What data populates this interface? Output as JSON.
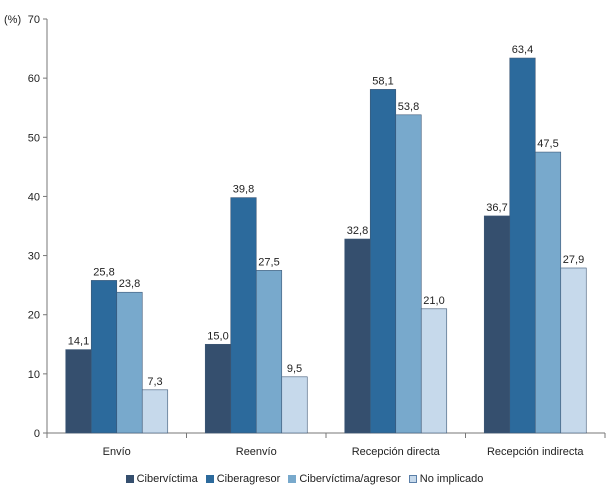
{
  "chart_data": {
    "type": "bar",
    "unit_label": "(%)",
    "categories": [
      "Envío",
      "Reenvío",
      "Recepción directa",
      "Recepción indirecta"
    ],
    "series": [
      {
        "name": "Cibervíctima",
        "values": [
          14.1,
          15.0,
          32.8,
          36.7
        ],
        "labels": [
          "14,1",
          "15,0",
          "32,8",
          "36,7"
        ],
        "color": "#354f6e"
      },
      {
        "name": "Ciberagresor",
        "values": [
          25.8,
          39.8,
          58.1,
          63.4
        ],
        "labels": [
          "25,8",
          "39,8",
          "58,1",
          "63,4"
        ],
        "color": "#2c6a9c"
      },
      {
        "name": "Cibervíctima/agresor",
        "values": [
          23.8,
          27.5,
          53.8,
          47.5
        ],
        "labels": [
          "23,8",
          "27,5",
          "53,8",
          "47,5"
        ],
        "color": "#78a9cc"
      },
      {
        "name": "No implicado",
        "values": [
          7.3,
          9.5,
          21.0,
          27.9
        ],
        "labels": [
          "7,3",
          "9,5",
          "21,0",
          "27,9"
        ],
        "color": "#c6d9eb"
      }
    ],
    "ylim": [
      0,
      70
    ],
    "yticks": [
      0,
      10,
      20,
      30,
      40,
      50,
      60,
      70
    ],
    "grid": false,
    "legend_position": "bottom"
  }
}
